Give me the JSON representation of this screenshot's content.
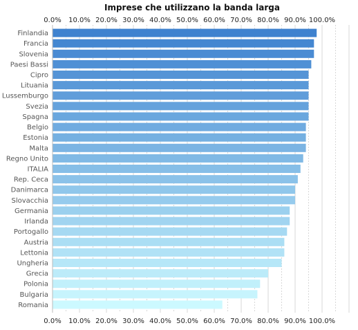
{
  "chart_data": {
    "type": "bar",
    "orientation": "horizontal",
    "title": "Imprese che utilizzano la banda larga",
    "xlabel": "",
    "ylabel": "",
    "xlim": [
      0,
      110
    ],
    "x_ticks": [
      "0.0%",
      "10.0%",
      "20.0%",
      "30.0%",
      "40.0%",
      "50.0%",
      "60.0%",
      "70.0%",
      "80.0%",
      "90.0%",
      "100.0%"
    ],
    "x_tick_values": [
      0,
      10,
      20,
      30,
      40,
      50,
      60,
      70,
      80,
      90,
      100
    ],
    "axis_labels_position": "top-and-bottom",
    "grid": true,
    "categories": [
      "Finlandia",
      "Francia",
      "Slovenia",
      "Paesi Bassi",
      "Cipro",
      "Lituania",
      "Lussemburgo",
      "Svezia",
      "Spagna",
      "Belgio",
      "Estonia",
      "Malta",
      "Regno Unito",
      "ITALIA",
      "Rep. Ceca",
      "Danimarca",
      "Slovacchia",
      "Germania",
      "Irlanda",
      "Portogallo",
      "Austria",
      "Lettonia",
      "Ungheria",
      "Grecia",
      "Polonia",
      "Bulgaria",
      "Romania"
    ],
    "values": [
      98,
      97,
      97,
      96,
      95,
      95,
      95,
      95,
      95,
      94,
      94,
      94,
      93,
      92,
      91,
      90,
      90,
      88,
      88,
      87,
      86,
      86,
      85,
      80,
      77,
      76,
      63
    ],
    "colors": {
      "top": "#3f82cf",
      "bottom": "#ccf9ff",
      "grid": "#d7d7d7"
    }
  }
}
